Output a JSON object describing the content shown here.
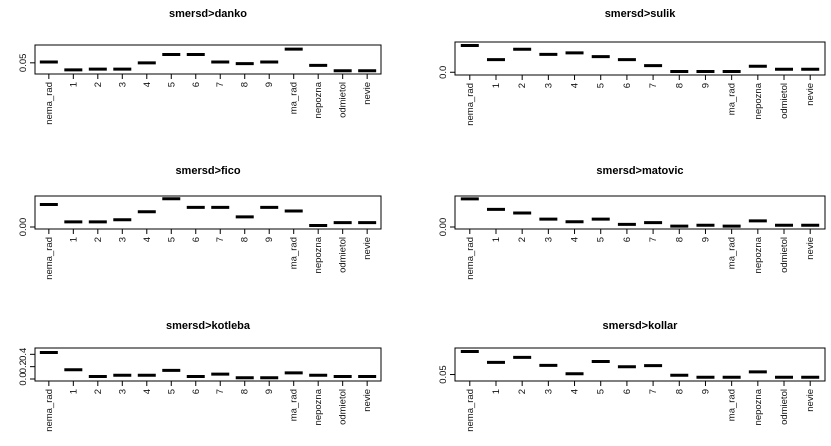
{
  "chart_data": [
    {
      "type": "scatter",
      "title": "smersd>danko",
      "categories": [
        "nema_rad",
        "1",
        "2",
        "3",
        "4",
        "5",
        "6",
        "7",
        "8",
        "9",
        "ma_rad",
        "nepozna",
        "odmietol",
        "nevie"
      ],
      "values": [
        0.052,
        0.033,
        0.035,
        0.035,
        0.05,
        0.07,
        0.07,
        0.052,
        0.048,
        0.052,
        0.083,
        0.044,
        0.031,
        0.031
      ],
      "yticks": [
        0.05
      ],
      "ytick_labels": [
        "0.05"
      ],
      "ylim": [
        0.028,
        0.088
      ]
    },
    {
      "type": "scatter",
      "title": "smersd>sulik",
      "categories": [
        "nema_rad",
        "1",
        "2",
        "3",
        "4",
        "5",
        "6",
        "7",
        "8",
        "9",
        "ma_rad",
        "nepozna",
        "odmietol",
        "nevie"
      ],
      "values": [
        0.36,
        0.17,
        0.31,
        0.24,
        0.26,
        0.21,
        0.17,
        0.09,
        0.01,
        0.01,
        0.01,
        0.08,
        0.04,
        0.04
      ],
      "yticks": [
        0.0
      ],
      "ytick_labels": [
        "0.0"
      ],
      "ylim": [
        -0.01,
        0.38
      ]
    },
    {
      "type": "scatter",
      "title": "smersd>fico",
      "categories": [
        "nema_rad",
        "1",
        "2",
        "3",
        "4",
        "5",
        "6",
        "7",
        "8",
        "9",
        "ma_rad",
        "nepozna",
        "odmietol",
        "nevie"
      ],
      "values": [
        0.31,
        0.07,
        0.07,
        0.1,
        0.21,
        0.39,
        0.27,
        0.27,
        0.14,
        0.27,
        0.22,
        0.02,
        0.06,
        0.06
      ],
      "yticks": [
        0.0
      ],
      "ytick_labels": [
        "0.00"
      ],
      "ylim": [
        0.0,
        0.4
      ]
    },
    {
      "type": "scatter",
      "title": "smersd>matovic",
      "categories": [
        "nema_rad",
        "1",
        "2",
        "3",
        "4",
        "5",
        "6",
        "7",
        "8",
        "9",
        "ma_rad",
        "nepozna",
        "odmietol",
        "nevie"
      ],
      "values": [
        0.32,
        0.2,
        0.16,
        0.09,
        0.06,
        0.09,
        0.03,
        0.05,
        0.01,
        0.02,
        0.01,
        0.07,
        0.02,
        0.02
      ],
      "yticks": [
        0.0
      ],
      "ytick_labels": [
        "0.00"
      ],
      "ylim": [
        0.0,
        0.33
      ]
    },
    {
      "type": "scatter",
      "title": "smersd>kotleba",
      "categories": [
        "nema_rad",
        "1",
        "2",
        "3",
        "4",
        "5",
        "6",
        "7",
        "8",
        "9",
        "ma_rad",
        "nepozna",
        "odmietol",
        "nevie"
      ],
      "values": [
        0.43,
        0.15,
        0.04,
        0.06,
        0.06,
        0.14,
        0.04,
        0.08,
        0.02,
        0.02,
        0.1,
        0.06,
        0.04,
        0.04
      ],
      "yticks": [
        0.0,
        0.2,
        0.4
      ],
      "ytick_labels": [
        "0.0",
        "0.2",
        "0.4"
      ],
      "ylim": [
        0.0,
        0.47
      ]
    },
    {
      "type": "scatter",
      "title": "smersd>kollar",
      "categories": [
        "nema_rad",
        "1",
        "2",
        "3",
        "4",
        "5",
        "6",
        "7",
        "8",
        "9",
        "ma_rad",
        "nepozna",
        "odmietol",
        "nevie"
      ],
      "values": [
        0.205,
        0.132,
        0.165,
        0.112,
        0.055,
        0.138,
        0.102,
        0.11,
        0.045,
        0.032,
        0.032,
        0.068,
        0.032,
        0.032
      ],
      "yticks": [
        0.05
      ],
      "ytick_labels": [
        "0.05"
      ],
      "ylim": [
        0.02,
        0.215
      ]
    }
  ]
}
